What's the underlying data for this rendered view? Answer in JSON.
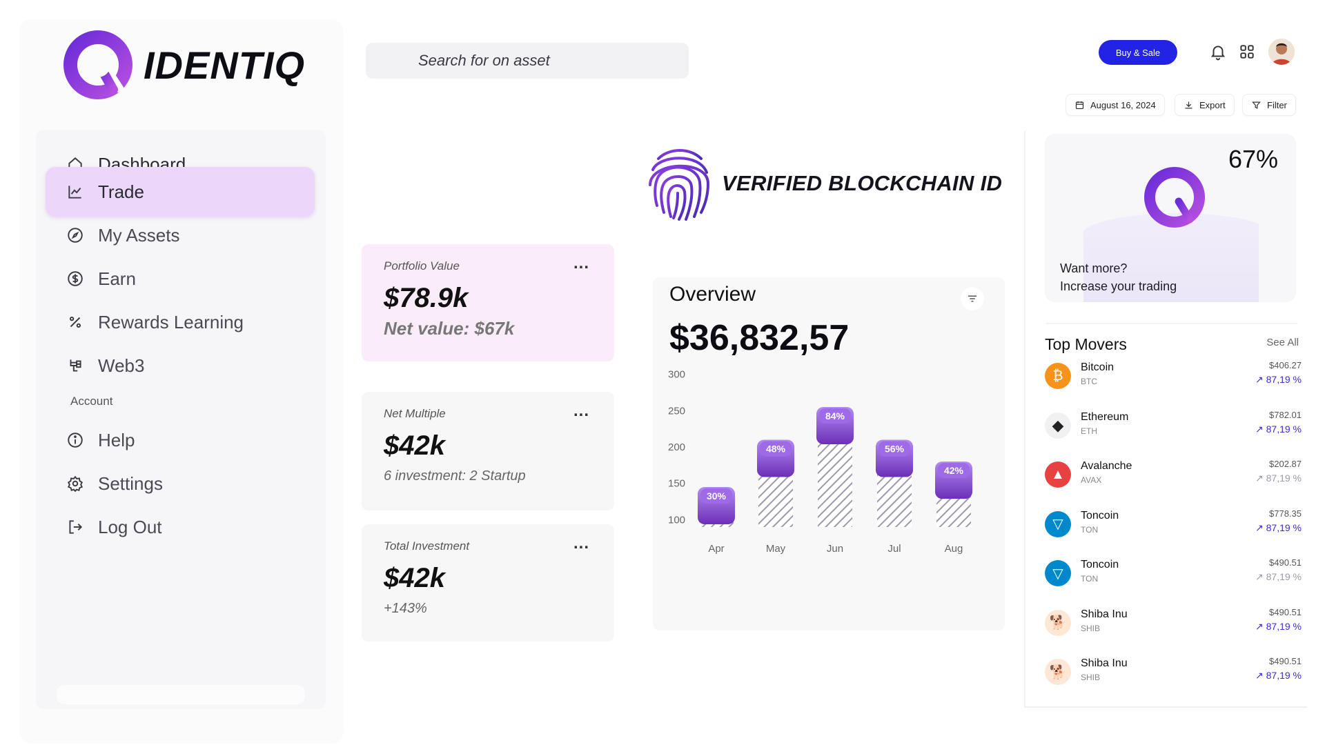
{
  "brand": {
    "name": "IDENTIQ"
  },
  "search": {
    "placeholder": "Search for on asset"
  },
  "sidebar": {
    "items": [
      {
        "label": "Dashboard",
        "icon": "home-icon"
      },
      {
        "label": "Trade",
        "icon": "trend-chart-icon",
        "active": true
      },
      {
        "label": "My Assets",
        "icon": "compass-icon"
      },
      {
        "label": "Earn",
        "icon": "dollar-coin-icon"
      },
      {
        "label": "Rewards Learning",
        "icon": "percent-icon"
      },
      {
        "label": "Web3",
        "icon": "network-icon"
      }
    ],
    "account_label": "Account",
    "account_items": [
      {
        "label": "Help",
        "icon": "info-icon"
      },
      {
        "label": "Settings",
        "icon": "gear-icon"
      },
      {
        "label": "Log Out",
        "icon": "logout-icon"
      }
    ]
  },
  "header": {
    "buy_label": "Buy & Sale",
    "date_label": "August 16, 2024",
    "export_label": "Export",
    "filter_label": "Filter"
  },
  "verified": {
    "label": "VERIFIED BLOCKCHAIN ID"
  },
  "cards": [
    {
      "title": "Portfolio Value",
      "value": "$78.9k",
      "sub": "Net value: $67k"
    },
    {
      "title": "Net Multiple",
      "value": "$42k",
      "sub": "6 investment: 2 Startup"
    },
    {
      "title": "Total Investment",
      "value": "$42k",
      "sub": "+143%"
    }
  ],
  "card_menu_label": "...",
  "overview": {
    "title": "Overview",
    "value": "$36,832,57"
  },
  "chart_data": {
    "type": "bar",
    "categories": [
      "Apr",
      "May",
      "Jun",
      "Jul",
      "Aug"
    ],
    "values": [
      145,
      210,
      255,
      210,
      180
    ],
    "labels": [
      "30%",
      "48%",
      "84%",
      "56%",
      "42%"
    ],
    "y_ticks": [
      300,
      250,
      200,
      150,
      100
    ],
    "ylim": [
      90,
      310
    ],
    "colors": {
      "bar_top": "#b28cf2",
      "bar_bottom": "#6c2fb8",
      "hatch": "#9a9aa8"
    }
  },
  "promo": {
    "percent": "67%",
    "line1": "Want more?",
    "line2": "Increase your trading"
  },
  "movers": {
    "title": "Top Movers",
    "see_all": "See All",
    "items": [
      {
        "name": "Bitcoin",
        "symbol": "BTC",
        "price": "$406.27",
        "change": "87,19 %",
        "color": "#f7931a",
        "glyph": "₿",
        "faded": false
      },
      {
        "name": "Ethereum",
        "symbol": "ETH",
        "price": "$782.01",
        "change": "87,19 %",
        "color": "#f1f1f3",
        "glyph": "◆",
        "faded": false
      },
      {
        "name": "Avalanche",
        "symbol": "AVAX",
        "price": "$202.87",
        "change": "87,19 %",
        "color": "#e84142",
        "glyph": "▲",
        "faded": true
      },
      {
        "name": "Toncoin",
        "symbol": "TON",
        "price": "$778.35",
        "change": "87,19 %",
        "color": "#0088cc",
        "glyph": "▽",
        "faded": false
      },
      {
        "name": "Toncoin",
        "symbol": "TON",
        "price": "$490.51",
        "change": "87,19 %",
        "color": "#0088cc",
        "glyph": "▽",
        "faded": true
      },
      {
        "name": "Shiba Inu",
        "symbol": "SHIB",
        "price": "$490.51",
        "change": "87,19 %",
        "color": "#ffe7d6",
        "glyph": "🐕",
        "faded": false
      },
      {
        "name": "Shiba Inu",
        "symbol": "SHIB",
        "price": "$490.51",
        "change": "87,19 %",
        "color": "#ffe7d6",
        "glyph": "🐕",
        "faded": false
      }
    ]
  },
  "colors": {
    "accent": "#2323e6",
    "brand_purple": "#7b2fd0",
    "active_nav": "#ecd7fa"
  }
}
